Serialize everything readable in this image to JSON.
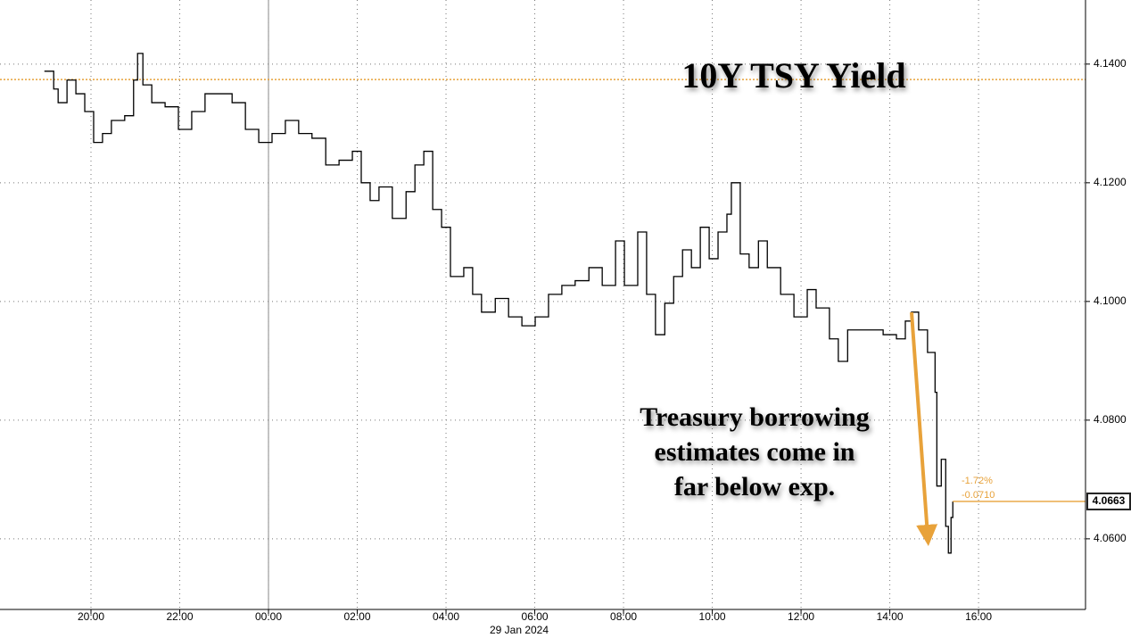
{
  "chart_data": {
    "type": "line",
    "title": "10Y TSY Yield",
    "annotation": [
      "Treasury borrowing",
      "estimates come in",
      "far below exp."
    ],
    "date_label": "29 Jan 2024",
    "change_labels": [
      "-1.72%",
      "-0.0710"
    ],
    "color": "#000000",
    "accent_color": "#e8a23a",
    "reference_line": 4.1374,
    "step": true,
    "grid": true,
    "x": [
      -5.05,
      -4.84,
      -4.74,
      -4.54,
      -4.34,
      -4.14,
      -3.94,
      -3.74,
      -3.54,
      -3.24,
      -3.04,
      -2.95,
      -2.83,
      -2.63,
      -2.33,
      -2.03,
      -1.73,
      -1.43,
      -1.13,
      -0.82,
      -0.52,
      -0.22,
      0.08,
      0.38,
      0.68,
      0.98,
      1.29,
      1.59,
      1.89,
      2.09,
      2.29,
      2.49,
      2.79,
      3.1,
      3.3,
      3.5,
      3.7,
      3.9,
      4.1,
      4.4,
      4.6,
      4.8,
      5.11,
      5.41,
      5.71,
      6.01,
      6.31,
      6.61,
      6.91,
      7.22,
      7.52,
      7.82,
      8.02,
      8.32,
      8.52,
      8.72,
      8.93,
      9.13,
      9.33,
      9.53,
      9.73,
      9.93,
      10.13,
      10.33,
      10.43,
      10.63,
      10.83,
      11.04,
      11.24,
      11.54,
      11.84,
      12.14,
      12.34,
      12.64,
      12.84,
      13.05,
      13.45,
      13.85,
      14.15,
      14.35,
      14.49,
      14.65,
      14.85,
      15.02,
      15.06,
      15.16,
      15.26,
      15.32,
      15.38,
      15.42
    ],
    "values": [
      4.1388,
      4.1358,
      4.1335,
      4.1373,
      4.135,
      4.132,
      4.1268,
      4.1283,
      4.1305,
      4.1313,
      4.1373,
      4.1418,
      4.1365,
      4.1335,
      4.1328,
      4.129,
      4.132,
      4.135,
      4.135,
      4.1335,
      4.129,
      4.1268,
      4.1283,
      4.1305,
      4.1283,
      4.1275,
      4.123,
      4.1238,
      4.1253,
      4.12,
      4.117,
      4.1193,
      4.114,
      4.1185,
      4.123,
      4.1253,
      4.1155,
      4.1125,
      4.1042,
      4.1057,
      4.1012,
      4.0982,
      4.1005,
      4.0974,
      4.0959,
      4.0974,
      4.1012,
      4.1027,
      4.1035,
      4.1057,
      4.1027,
      4.1102,
      4.1027,
      4.1117,
      4.1012,
      4.0944,
      4.0997,
      4.1042,
      4.1087,
      4.1057,
      4.1125,
      4.1072,
      4.1117,
      4.1147,
      4.12,
      4.108,
      4.1057,
      4.1102,
      4.1057,
      4.1012,
      4.0974,
      4.102,
      4.0989,
      4.0937,
      4.0899,
      4.0952,
      4.0952,
      4.0944,
      4.0937,
      4.0967,
      4.0982,
      4.0952,
      4.0914,
      4.0847,
      4.0689,
      4.0734,
      4.0621,
      4.0576,
      4.0636,
      4.0663
    ],
    "xlim": [
      -6.05,
      18.41
    ],
    "ylim": [
      4.0481,
      4.1508
    ],
    "xticks": [
      {
        "value": -4,
        "label": "20:00"
      },
      {
        "value": -2,
        "label": "22:00"
      },
      {
        "value": 0,
        "label": "00:00"
      },
      {
        "value": 2,
        "label": "02:00"
      },
      {
        "value": 4,
        "label": "04:00"
      },
      {
        "value": 6,
        "label": "06:00"
      },
      {
        "value": 8,
        "label": "08:00"
      },
      {
        "value": 10,
        "label": "10:00"
      },
      {
        "value": 12,
        "label": "12:00"
      },
      {
        "value": 14,
        "label": "14:00"
      },
      {
        "value": 16,
        "label": "16:00"
      }
    ],
    "yticks": [
      {
        "value": 4.06,
        "label": "4.0600"
      },
      {
        "value": 4.08,
        "label": "4.0800"
      },
      {
        "value": 4.1,
        "label": "4.1000"
      },
      {
        "value": 4.12,
        "label": "4.1200"
      },
      {
        "value": 4.14,
        "label": "4.1400"
      }
    ],
    "day_separator": 0
  }
}
